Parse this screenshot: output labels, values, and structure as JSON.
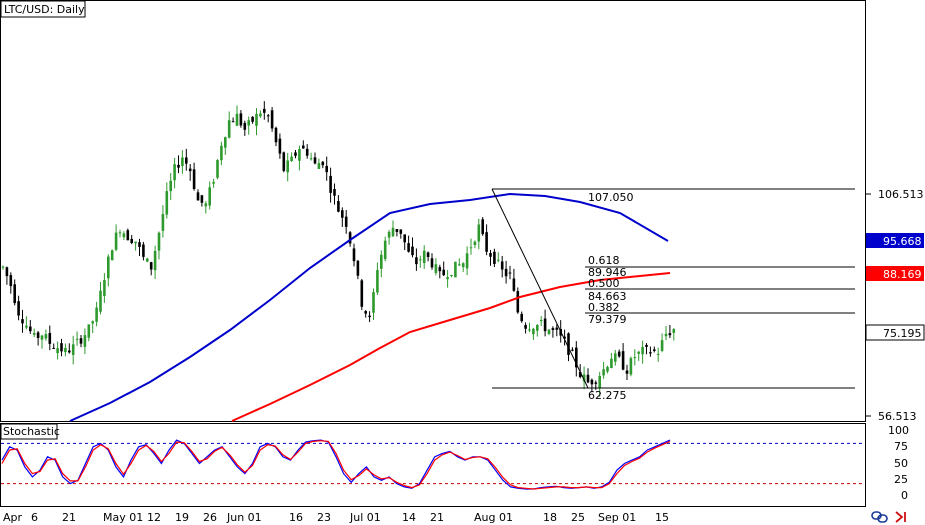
{
  "chart_data": [
    {
      "type": "candlestick",
      "title": "LTC/USD: Daily",
      "y_axis_ticks": [
        "106.513",
        "56.513"
      ],
      "x_axis_ticks": [
        "Apr",
        "6",
        "21",
        "May 01",
        "12",
        "19",
        "26",
        "Jun 01",
        "16",
        "23",
        "Jul 01",
        "14",
        "21",
        "Aug 01",
        "18",
        "25",
        "Sep 01",
        "15"
      ],
      "price_labels": [
        {
          "value": "95.668",
          "color": "#0000cc"
        },
        {
          "value": "88.169",
          "color": "#ff0000"
        },
        {
          "value": "75.195",
          "color": "#ffffff"
        }
      ],
      "fibonacci": {
        "high": "107.050",
        "low": "62.275",
        "levels": [
          {
            "ratio": "0.618",
            "price": "89.946"
          },
          {
            "ratio": "0.500",
            "price": "84.663"
          },
          {
            "ratio": "0.382",
            "price": "79.379"
          }
        ]
      },
      "moving_averages": [
        {
          "color": "#0000cc",
          "last": 95.668
        },
        {
          "color": "#ff0000",
          "last": 88.169
        }
      ],
      "candle_colors": {
        "up": "#2e9a2e",
        "down": "#000000"
      },
      "ylim": [
        53.3,
        129.5
      ],
      "approx_path": [
        [
          0,
          90
        ],
        [
          2,
          86
        ],
        [
          4,
          80
        ],
        [
          6,
          77
        ],
        [
          8,
          74
        ],
        [
          10,
          75
        ],
        [
          12,
          73
        ],
        [
          14,
          72
        ],
        [
          16,
          71
        ],
        [
          18,
          72
        ],
        [
          20,
          74
        ],
        [
          22,
          76
        ],
        [
          24,
          80
        ],
        [
          26,
          88
        ],
        [
          28,
          95
        ],
        [
          30,
          99
        ],
        [
          32,
          97
        ],
        [
          34,
          96
        ],
        [
          36,
          92
        ],
        [
          38,
          90
        ],
        [
          40,
          98
        ],
        [
          42,
          106
        ],
        [
          44,
          112
        ],
        [
          46,
          115
        ],
        [
          48,
          112
        ],
        [
          50,
          105
        ],
        [
          52,
          104
        ],
        [
          54,
          110
        ],
        [
          56,
          118
        ],
        [
          58,
          123
        ],
        [
          60,
          124
        ],
        [
          62,
          121
        ],
        [
          64,
          123
        ],
        [
          66,
          125
        ],
        [
          68,
          124
        ],
        [
          70,
          118
        ],
        [
          72,
          112
        ],
        [
          74,
          114
        ],
        [
          76,
          117
        ],
        [
          78,
          116
        ],
        [
          80,
          113
        ],
        [
          82,
          114
        ],
        [
          84,
          108
        ],
        [
          86,
          103
        ],
        [
          88,
          100
        ],
        [
          90,
          92
        ],
        [
          92,
          82
        ],
        [
          94,
          78
        ],
        [
          96,
          90
        ],
        [
          98,
          96
        ],
        [
          100,
          99
        ],
        [
          102,
          98
        ],
        [
          104,
          93
        ],
        [
          106,
          91
        ],
        [
          108,
          93
        ],
        [
          110,
          91
        ],
        [
          112,
          88
        ],
        [
          114,
          89
        ],
        [
          116,
          90
        ],
        [
          118,
          91
        ],
        [
          120,
          95
        ],
        [
          122,
          99
        ],
        [
          124,
          94
        ],
        [
          126,
          92
        ],
        [
          128,
          89
        ],
        [
          130,
          88
        ],
        [
          132,
          80
        ],
        [
          134,
          77
        ],
        [
          136,
          77
        ],
        [
          138,
          77
        ],
        [
          140,
          76
        ],
        [
          142,
          75
        ],
        [
          144,
          73
        ],
        [
          146,
          70
        ],
        [
          148,
          66
        ],
        [
          150,
          64
        ],
        [
          152,
          65
        ],
        [
          154,
          67
        ],
        [
          156,
          70
        ],
        [
          158,
          69
        ],
        [
          160,
          67
        ],
        [
          162,
          70
        ],
        [
          164,
          71
        ],
        [
          166,
          71
        ],
        [
          168,
          71
        ],
        [
          170,
          75
        ],
        [
          172,
          76
        ]
      ]
    },
    {
      "type": "line",
      "title": "Stochastic",
      "y_axis_ticks": [
        "100",
        "75",
        "50",
        "25",
        "0"
      ],
      "ylim": [
        0,
        100
      ],
      "levels": [
        80,
        20
      ],
      "series": [
        {
          "color": "#0000ff",
          "values": [
            55,
            75,
            70,
            45,
            30,
            40,
            60,
            55,
            30,
            20,
            25,
            50,
            75,
            80,
            70,
            45,
            30,
            55,
            75,
            78,
            65,
            50,
            70,
            85,
            80,
            65,
            50,
            60,
            70,
            75,
            60,
            45,
            35,
            50,
            75,
            80,
            75,
            60,
            55,
            70,
            82,
            84,
            85,
            82,
            60,
            35,
            22,
            35,
            45,
            30,
            25,
            30,
            20,
            15,
            13,
            20,
            40,
            60,
            65,
            68,
            60,
            55,
            60,
            60,
            55,
            40,
            25,
            15,
            13,
            12,
            12,
            14,
            15,
            16,
            14,
            13,
            14,
            15,
            13,
            15,
            22,
            40,
            50,
            55,
            60,
            70,
            75,
            80,
            85
          ]
        },
        {
          "color": "#ff0000",
          "values": [
            50,
            70,
            72,
            50,
            35,
            38,
            55,
            57,
            35,
            24,
            24,
            45,
            70,
            78,
            72,
            50,
            34,
            50,
            70,
            77,
            68,
            53,
            65,
            82,
            81,
            68,
            53,
            57,
            68,
            74,
            63,
            48,
            37,
            47,
            70,
            78,
            76,
            63,
            56,
            67,
            80,
            83,
            84,
            83,
            65,
            40,
            26,
            32,
            42,
            33,
            27,
            29,
            22,
            17,
            14,
            18,
            35,
            55,
            63,
            67,
            62,
            56,
            59,
            60,
            57,
            44,
            29,
            18,
            14,
            13,
            12,
            13,
            14,
            15,
            15,
            14,
            14,
            15,
            14,
            14,
            20,
            35,
            47,
            53,
            58,
            67,
            73,
            78,
            83
          ]
        }
      ]
    }
  ],
  "footer": {
    "icons": [
      "link-icon",
      "scroll-right-icon"
    ]
  }
}
